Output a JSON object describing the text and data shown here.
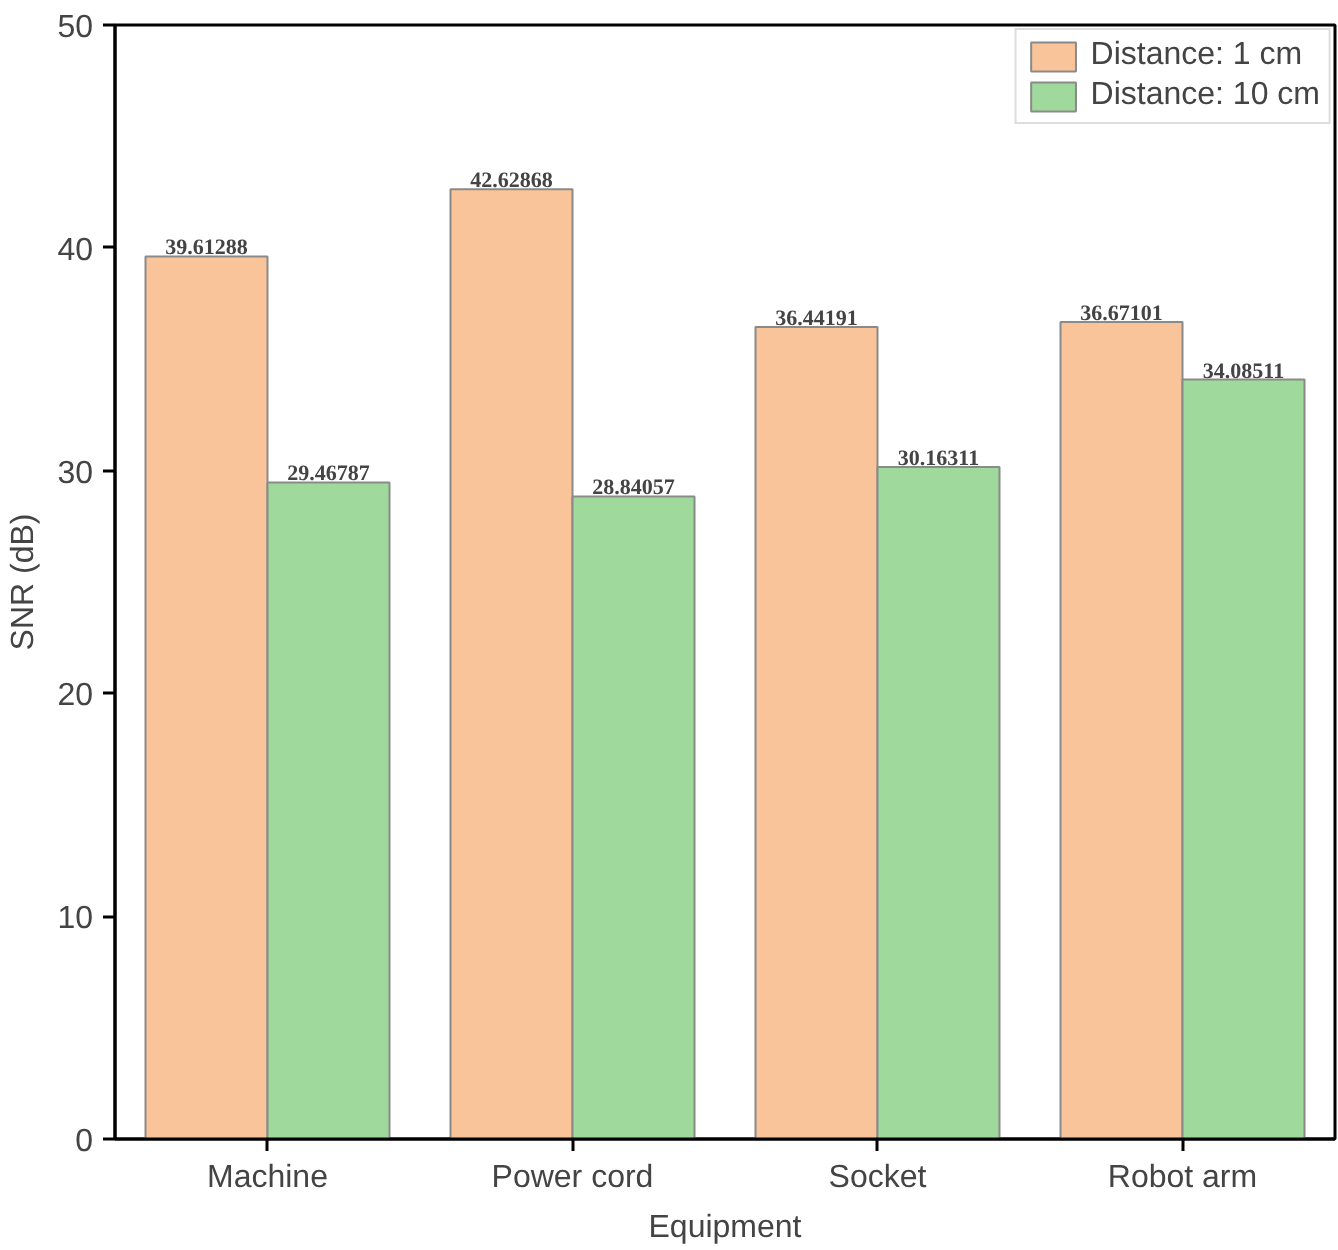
{
  "chart_data": {
    "type": "bar",
    "xlabel": "Equipment",
    "ylabel": "SNR (dB)",
    "categories": [
      "Machine",
      "Power cord",
      "Socket",
      "Robot arm"
    ],
    "series": [
      {
        "name": "Distance: 1 cm",
        "color": "#f9c49a",
        "values": [
          39.61288,
          42.62868,
          36.44191,
          36.67101
        ]
      },
      {
        "name": "Distance: 10 cm",
        "color": "#9fd99b",
        "values": [
          29.46787,
          28.84057,
          30.16311,
          34.08511
        ]
      }
    ],
    "ylim": [
      0,
      50
    ],
    "yticks": [
      0,
      10,
      20,
      30,
      40,
      50
    ],
    "data_labels": true,
    "legend": "top right",
    "grid": false
  }
}
